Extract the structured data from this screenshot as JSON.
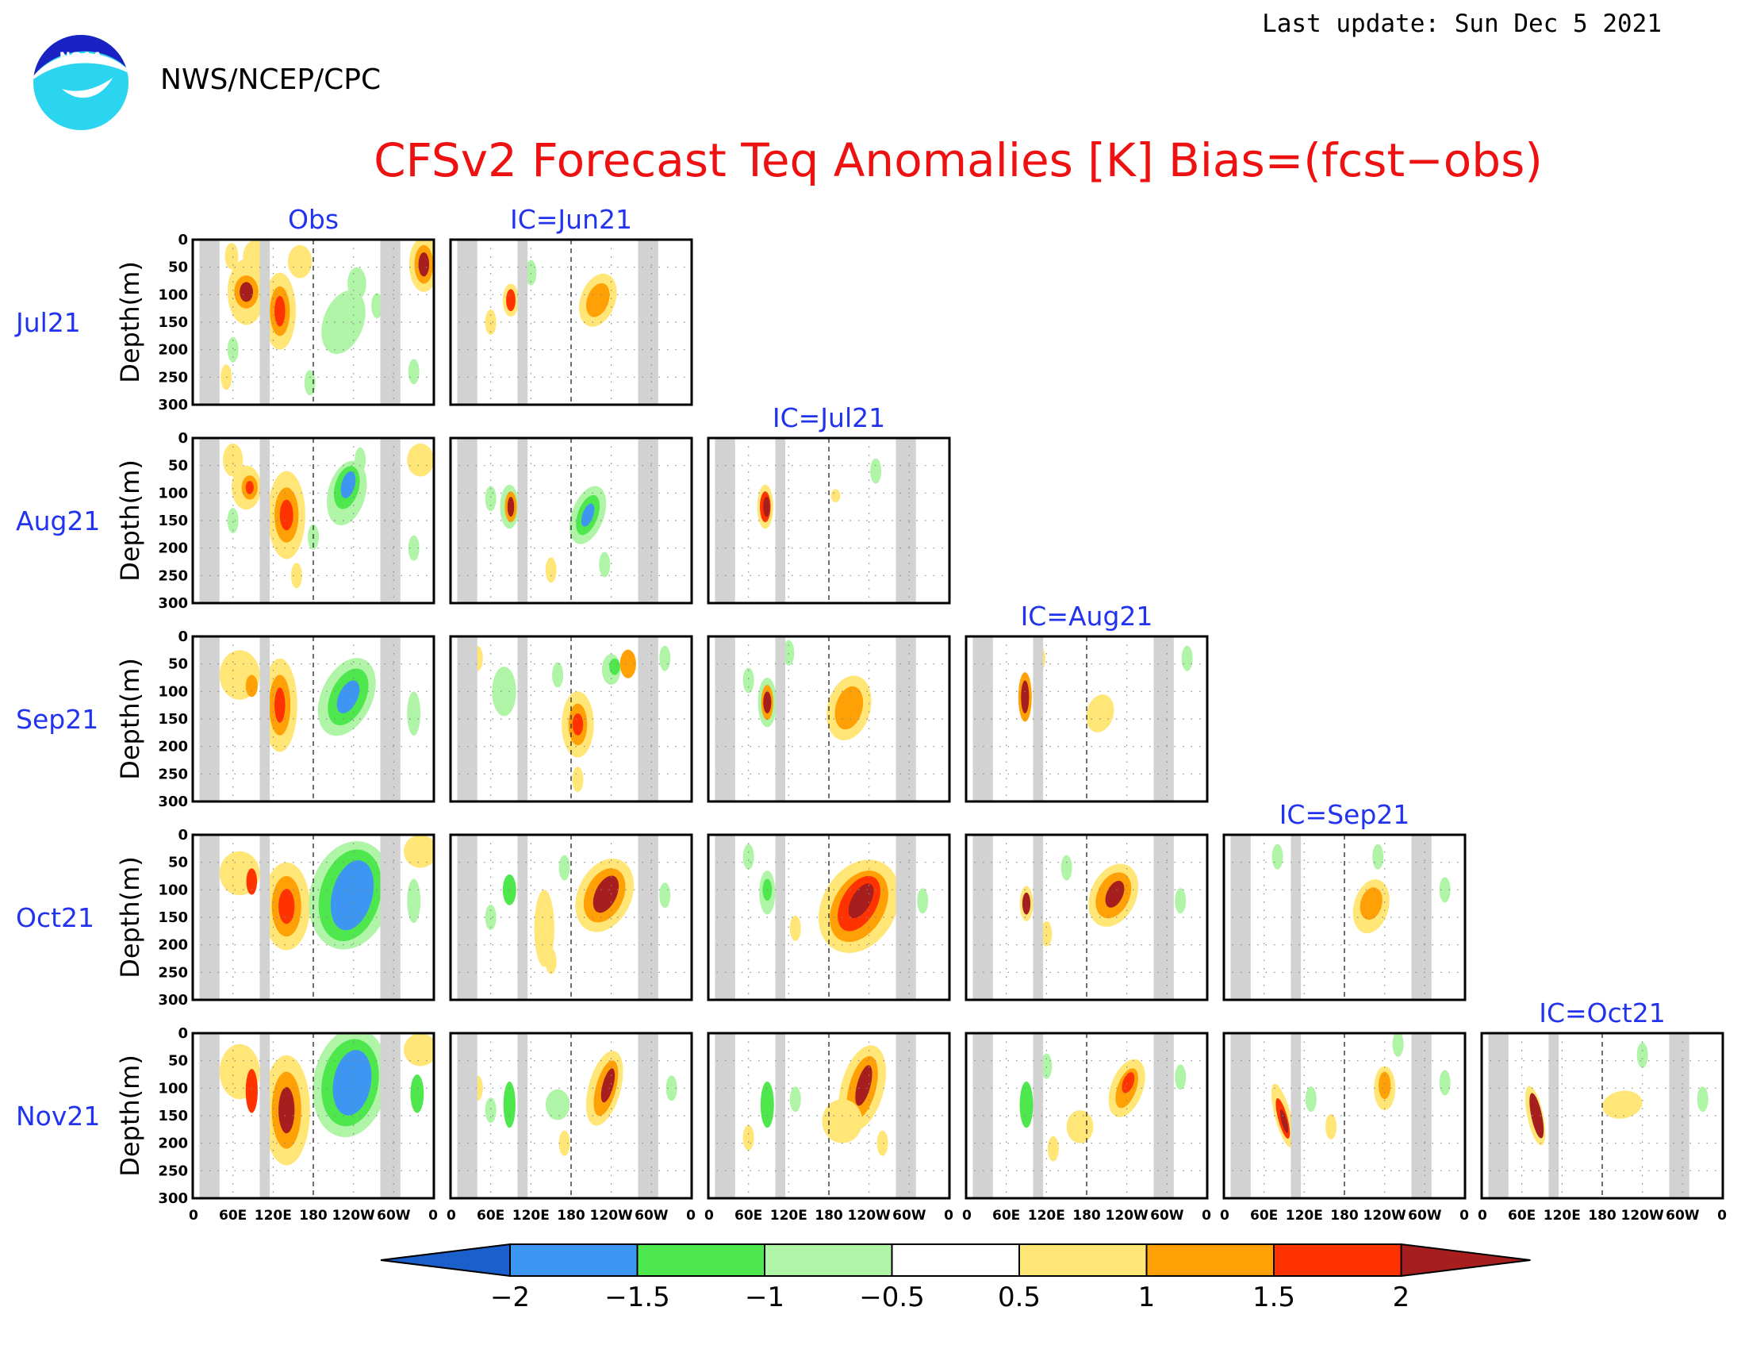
{
  "header": {
    "organization": "NWS/NCEP/CPC",
    "last_update": "Last update: Sun Dec 5 2021",
    "logo_text": "NOAA"
  },
  "chart_data": {
    "type": "heatmap",
    "title": "CFSv2 Forecast Teq Anomalies [K] Bias=(fcst−obs)",
    "ylabel": "Depth(m)",
    "yticks": [
      "0",
      "50",
      "100",
      "150",
      "200",
      "250",
      "300"
    ],
    "ylim": [
      0,
      300
    ],
    "xticks": [
      "0",
      "60E",
      "120E",
      "180",
      "120W",
      "60W",
      "0"
    ],
    "xlim": [
      0,
      360
    ],
    "column_labels": [
      "Obs",
      "IC=Jun21",
      "IC=Jul21",
      "IC=Aug21",
      "IC=Sep21",
      "IC=Oct21"
    ],
    "row_labels": [
      "Jul21",
      "Aug21",
      "Sep21",
      "Oct21",
      "Nov21"
    ],
    "colorbar": {
      "levels": [
        "−2",
        "−1.5",
        "−1",
        "−0.5",
        "0.5",
        "1",
        "1.5",
        "2"
      ],
      "colors": [
        "#1a5fcc",
        "#3d96f2",
        "#4ee84e",
        "#b0f4a8",
        "#ffffff",
        "#ffe676",
        "#ffa106",
        "#ff3300",
        "#a61e1e"
      ]
    },
    "land_mask_longitudes": [
      [
        10,
        40
      ],
      [
        100,
        115
      ],
      [
        280,
        310
      ]
    ],
    "dateline_longitude": 180
  }
}
